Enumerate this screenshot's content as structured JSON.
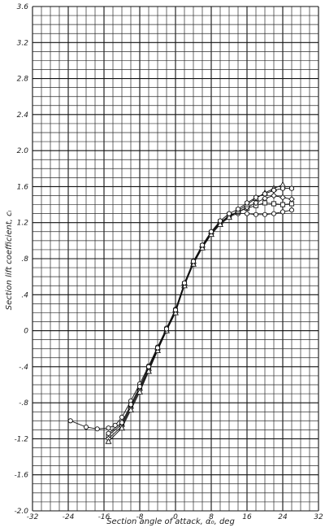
{
  "chart_data": {
    "type": "line",
    "xlabel": "Section angle of attack, α₀, deg",
    "ylabel": "Section lift coefficient, cₗ",
    "xlim": [
      -32,
      32
    ],
    "ylim": [
      -2.0,
      3.6
    ],
    "x_minor_step": 2,
    "y_minor_step": 0.1,
    "xticks": [
      -32,
      -24,
      -16,
      -8,
      0,
      8,
      16,
      24,
      32
    ],
    "xtick_labels": [
      "-32",
      "-24",
      "-16",
      "-8",
      "0",
      "8",
      "16",
      "24",
      "32"
    ],
    "yticks": [
      -2.0,
      -1.6,
      -1.2,
      -0.8,
      -0.4,
      0,
      0.4,
      0.8,
      1.2,
      1.6,
      2.0,
      2.4,
      2.8,
      3.2,
      3.6
    ],
    "ytick_labels": [
      "-2.0",
      "-1.6",
      "-1.2",
      "-.8",
      "-.4",
      "0",
      ".4",
      ".8",
      "1.2",
      "1.6",
      "2.0",
      "2.4",
      "2.8",
      "3.2",
      "3.6"
    ],
    "grid": true,
    "series": [
      {
        "marker": "circle",
        "x": [
          -23.5,
          -20,
          -17.5,
          -15,
          -13.5,
          -12,
          -10,
          -8,
          -6,
          -4,
          -2,
          0,
          2,
          4,
          6,
          8,
          10,
          12,
          14,
          16,
          18,
          20,
          22,
          24,
          26
        ],
        "y": [
          -1.0,
          -1.07,
          -1.09,
          -1.08,
          -1.05,
          -0.96,
          -0.78,
          -0.59,
          -0.39,
          -0.18,
          0.03,
          0.24,
          0.53,
          0.77,
          0.95,
          1.1,
          1.21,
          1.27,
          1.3,
          1.3,
          1.29,
          1.29,
          1.3,
          1.32,
          1.34
        ]
      },
      {
        "marker": "square",
        "x": [
          -15,
          -12,
          -10,
          -8,
          -6,
          -4,
          -2,
          0,
          2,
          4,
          6,
          8,
          10,
          12,
          14,
          16,
          18,
          20,
          22,
          24,
          26
        ],
        "y": [
          -1.16,
          -1.04,
          -0.84,
          -0.64,
          -0.42,
          -0.2,
          0.01,
          0.22,
          0.52,
          0.76,
          0.94,
          1.09,
          1.2,
          1.28,
          1.32,
          1.36,
          1.39,
          1.42,
          1.41,
          1.4,
          1.41
        ]
      },
      {
        "marker": "diamond",
        "x": [
          -15,
          -12,
          -10,
          -8,
          -6,
          -4,
          -2,
          0,
          2,
          4,
          6,
          8,
          10,
          12,
          14,
          16,
          18,
          20,
          22,
          24,
          26
        ],
        "y": [
          -1.2,
          -1.06,
          -0.86,
          -0.66,
          -0.44,
          -0.21,
          0.0,
          0.21,
          0.51,
          0.75,
          0.93,
          1.08,
          1.19,
          1.27,
          1.32,
          1.37,
          1.42,
          1.47,
          1.5,
          1.48,
          1.46
        ]
      },
      {
        "marker": "triangle",
        "x": [
          -15,
          -12,
          -10,
          -8,
          -6,
          -4,
          -2,
          0,
          2,
          4,
          6,
          8,
          10,
          12,
          14,
          16,
          18,
          20,
          22,
          24
        ],
        "y": [
          -1.23,
          -1.08,
          -0.88,
          -0.68,
          -0.45,
          -0.22,
          0.0,
          0.2,
          0.5,
          0.74,
          0.92,
          1.07,
          1.18,
          1.26,
          1.33,
          1.4,
          1.47,
          1.53,
          1.58,
          1.62
        ]
      },
      {
        "marker": "hexagon",
        "x": [
          -15,
          -12,
          -10,
          -8,
          -6,
          -4,
          -2,
          0,
          2,
          4,
          6,
          8,
          10,
          12,
          14,
          16,
          18,
          20,
          22,
          24,
          26
        ],
        "y": [
          -1.14,
          -1.02,
          -0.82,
          -0.62,
          -0.4,
          -0.19,
          0.02,
          0.23,
          0.53,
          0.77,
          0.95,
          1.1,
          1.22,
          1.3,
          1.35,
          1.42,
          1.48,
          1.52,
          1.56,
          1.58,
          1.58
        ]
      }
    ]
  }
}
